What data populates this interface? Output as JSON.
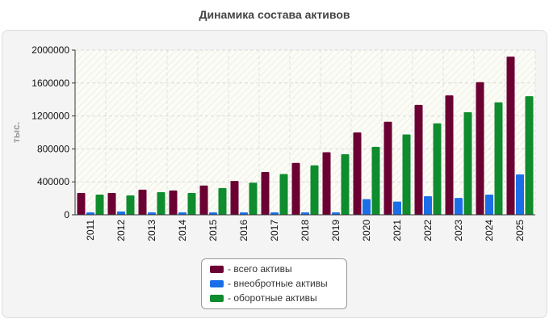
{
  "chart_data": {
    "type": "bar",
    "title": "Динамика состава активов",
    "ylabel": "тыс.",
    "xlabel": "",
    "categories": [
      "2011",
      "2012",
      "2013",
      "2014",
      "2015",
      "2016",
      "2017",
      "2018",
      "2019",
      "2020",
      "2021",
      "2022",
      "2023",
      "2024",
      "2025"
    ],
    "series": [
      {
        "name": "- всего активы",
        "color": "#6b0033",
        "values": [
          265000,
          265000,
          305000,
          295000,
          355000,
          410000,
          520000,
          630000,
          760000,
          1000000,
          1130000,
          1335000,
          1450000,
          1610000,
          1920000
        ]
      },
      {
        "name": "- внеобротные активы",
        "color": "#1a6fe8",
        "values": [
          30000,
          40000,
          30000,
          30000,
          30000,
          30000,
          30000,
          30000,
          30000,
          190000,
          160000,
          225000,
          205000,
          245000,
          490000
        ]
      },
      {
        "name": "- оборотные активы",
        "color": "#0e8c2e",
        "values": [
          245000,
          235000,
          275000,
          265000,
          325000,
          390000,
          495000,
          600000,
          735000,
          825000,
          975000,
          1110000,
          1245000,
          1365000,
          1440000
        ]
      }
    ],
    "ylim": [
      0,
      2000000
    ],
    "yticks": [
      "0",
      "400000",
      "800000",
      "1200000",
      "1600000",
      "2000000"
    ],
    "grid": true,
    "legend_position": "bottom"
  }
}
